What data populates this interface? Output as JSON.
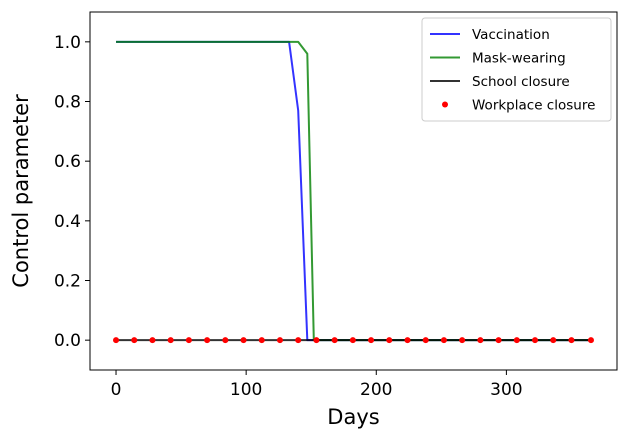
{
  "chart_data": {
    "type": "line",
    "title": "",
    "xlabel": "Days",
    "ylabel": "Control parameter",
    "xlim": [
      -20,
      385
    ],
    "ylim": [
      -0.1,
      1.1
    ],
    "xticks": [
      0,
      100,
      200,
      300
    ],
    "xtick_labels": [
      "0",
      "100",
      "200",
      "300"
    ],
    "yticks": [
      0.0,
      0.2,
      0.4,
      0.6,
      0.8,
      1.0
    ],
    "ytick_labels": [
      "0.0",
      "0.2",
      "0.4",
      "0.6",
      "0.8",
      "1.0"
    ],
    "grid": false,
    "legend": "top-right",
    "series": [
      {
        "name": "Vaccination",
        "style": "line",
        "color": "#0000ff",
        "x": [
          0,
          133,
          140,
          147,
          154,
          365
        ],
        "y": [
          1.0,
          1.0,
          0.77,
          0.0,
          0.0,
          0.0
        ]
      },
      {
        "name": "Mask-wearing",
        "style": "line",
        "color": "#008000",
        "x": [
          0,
          140,
          147,
          152,
          154,
          365
        ],
        "y": [
          1.0,
          1.0,
          0.96,
          0.0,
          0.0,
          0.0
        ]
      },
      {
        "name": "School closure",
        "style": "line",
        "color": "#000000",
        "x": [
          0,
          365
        ],
        "y": [
          0.0,
          0.0
        ]
      },
      {
        "name": "Workplace closure",
        "style": "points",
        "color": "#ff0000",
        "x": [
          0,
          14,
          28,
          42,
          56,
          70,
          84,
          98,
          112,
          126,
          140,
          154,
          168,
          182,
          196,
          210,
          224,
          238,
          252,
          266,
          280,
          294,
          308,
          322,
          336,
          350,
          365
        ],
        "y": [
          0,
          0,
          0,
          0,
          0,
          0,
          0,
          0,
          0,
          0,
          0,
          0,
          0,
          0,
          0,
          0,
          0,
          0,
          0,
          0,
          0,
          0,
          0,
          0,
          0,
          0,
          0
        ]
      }
    ]
  }
}
